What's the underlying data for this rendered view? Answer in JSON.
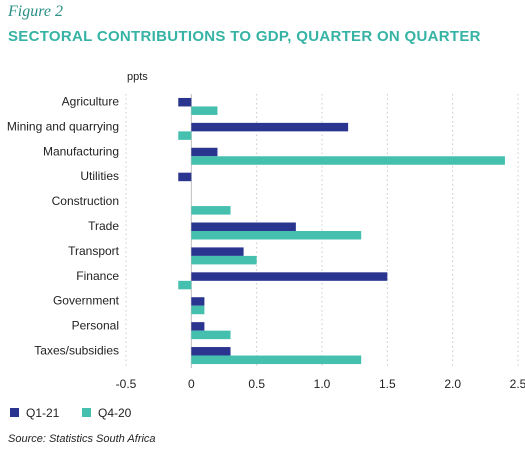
{
  "figure_label": "Figure 2",
  "source": "Source: Statistics South Africa",
  "colors": {
    "q1_21": "#2a3590",
    "q4_20": "#45bfae",
    "title": "#35b3a4",
    "grid": "#c9c9c9"
  },
  "chart_data": {
    "type": "bar",
    "orientation": "horizontal",
    "title": "SECTORAL CONTRIBUTIONS TO GDP, QUARTER ON QUARTER",
    "unit_label": "ppts",
    "categories": [
      "Agriculture",
      "Mining and quarrying",
      "Manufacturing",
      "Utilities",
      "Construction",
      "Trade",
      "Transport",
      "Finance",
      "Government",
      "Personal",
      "Taxes/subsidies"
    ],
    "series": [
      {
        "name": "Q1-21",
        "color": "#2a3590",
        "values": [
          -0.1,
          1.2,
          0.2,
          -0.1,
          0.0,
          0.8,
          0.4,
          1.5,
          0.1,
          0.1,
          0.3
        ]
      },
      {
        "name": "Q4-20",
        "color": "#45bfae",
        "values": [
          0.2,
          -0.1,
          2.4,
          0.0,
          0.3,
          1.3,
          0.5,
          -0.1,
          0.1,
          0.3,
          1.3
        ]
      }
    ],
    "xlim": [
      -0.5,
      2.5
    ],
    "xticks": [
      "-0.5",
      "0",
      "0.5",
      "1.0",
      "1.5",
      "2.0",
      "2.5"
    ],
    "xtick_values": [
      -0.5,
      0,
      0.5,
      1.0,
      1.5,
      2.0,
      2.5
    ],
    "grid": "vertical dotted",
    "legend_position": "bottom-left"
  }
}
